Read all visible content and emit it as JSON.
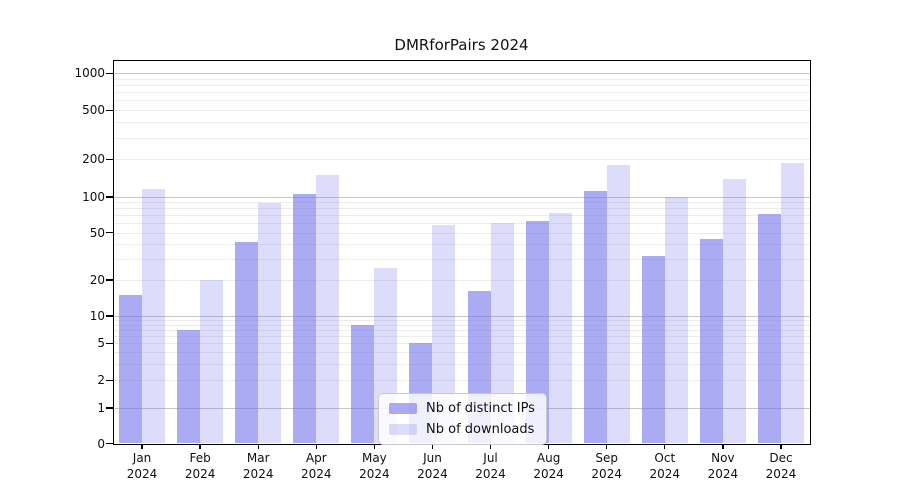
{
  "chart_data": {
    "type": "bar",
    "title": "DMRforPairs 2024",
    "categories": [
      "Jan",
      "Feb",
      "Mar",
      "Apr",
      "May",
      "Jun",
      "Jul",
      "Aug",
      "Sep",
      "Oct",
      "Nov",
      "Dec"
    ],
    "year_label": "2024",
    "series": [
      {
        "name": "Nb of distinct IPs",
        "slug": "distinct-ips",
        "color": "rgba(119,119,238,0.62)",
        "values": [
          15,
          7,
          42,
          106,
          8,
          5,
          16,
          62,
          112,
          32,
          44,
          72
        ]
      },
      {
        "name": "Nb of downloads",
        "slug": "downloads",
        "color": "rgba(119,119,238,0.25)",
        "values": [
          115,
          20,
          88,
          150,
          25,
          58,
          60,
          73,
          180,
          100,
          140,
          186
        ]
      }
    ],
    "yscale": "log",
    "yticks": [
      0,
      1,
      2,
      5,
      10,
      20,
      50,
      100,
      200,
      500,
      1000
    ],
    "ylim": [
      0,
      2000
    ],
    "xlabel": "",
    "ylabel": "",
    "grid": "on",
    "legend_position": "bottom-center"
  },
  "colors": {
    "accent": "#7777ee",
    "grid_major": "#c6c6c6",
    "grid_minor": "#ececec",
    "axis": "#000000",
    "text": "#111111",
    "legend_border": "#c9c9c9",
    "legend_bg": "rgba(255,255,255,0.82)"
  }
}
